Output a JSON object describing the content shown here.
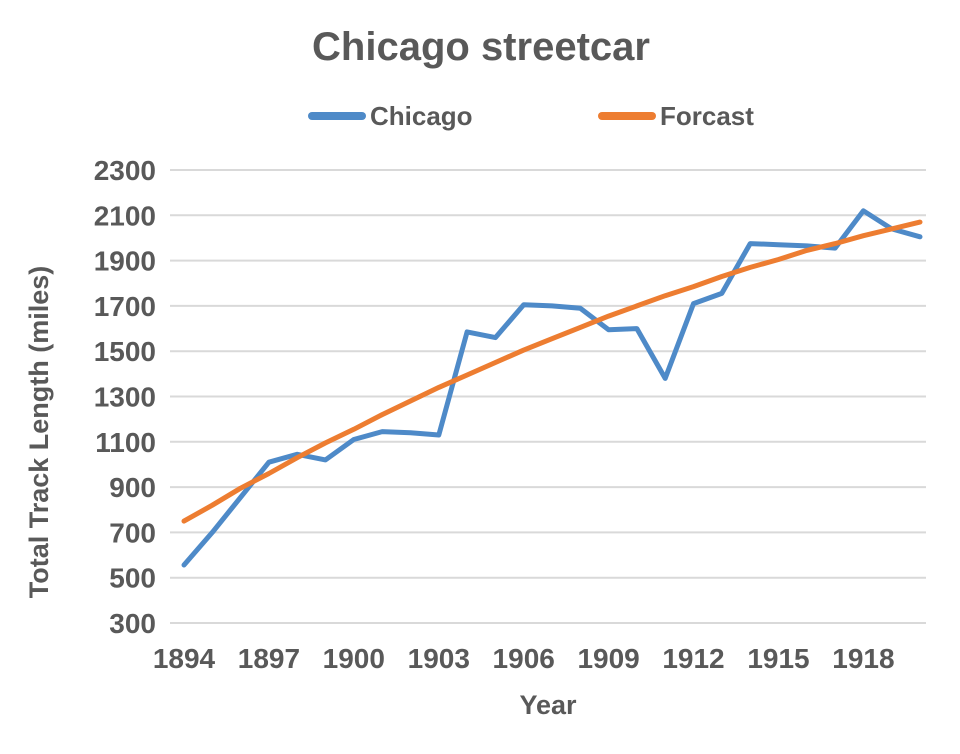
{
  "title": "Chicago streetcar",
  "colors": {
    "chicago_line": "#4E8AC8",
    "forecast_line": "#ED7D31",
    "text": "#595959",
    "gridline": "#D9D9D9",
    "background": "#FFFFFF"
  },
  "legend": {
    "position": "top",
    "items": [
      {
        "label": "Chicago",
        "swatch": "chicago-line-swatch"
      },
      {
        "label": "Forcast",
        "swatch": "forecast-line-swatch"
      }
    ]
  },
  "chart_data": {
    "type": "line",
    "title": "Chicago streetcar",
    "xlabel": "Year",
    "ylabel": "Total Track Length (miles)",
    "x": [
      1894,
      1895,
      1896,
      1897,
      1898,
      1899,
      1900,
      1901,
      1902,
      1903,
      1904,
      1905,
      1906,
      1907,
      1908,
      1909,
      1910,
      1911,
      1912,
      1913,
      1914,
      1915,
      1916,
      1917,
      1918,
      1919,
      1920
    ],
    "x_tick_labels": [
      "1894",
      "1897",
      "1900",
      "1903",
      "1906",
      "1909",
      "1912",
      "1915",
      "1918"
    ],
    "y_ticks": [
      300,
      500,
      700,
      900,
      1100,
      1300,
      1500,
      1700,
      1900,
      2100,
      2300
    ],
    "ylim": [
      300,
      2300
    ],
    "xlim": [
      1894,
      1920
    ],
    "grid": "horizontal",
    "legend_position": "top",
    "series": [
      {
        "name": "Chicago",
        "color": "#4E8AC8",
        "values": [
          556,
          700,
          855,
          1010,
          1045,
          1020,
          1110,
          1145,
          1140,
          1130,
          1585,
          1560,
          1705,
          1700,
          1690,
          1595,
          1600,
          1380,
          1710,
          1755,
          1975,
          1970,
          1965,
          1955,
          2120,
          2040,
          2005
        ]
      },
      {
        "name": "Forcast",
        "color": "#ED7D31",
        "values": [
          750,
          820,
          895,
          960,
          1030,
          1095,
          1155,
          1220,
          1280,
          1340,
          1395,
          1450,
          1505,
          1555,
          1605,
          1655,
          1700,
          1745,
          1785,
          1830,
          1870,
          1905,
          1945,
          1975,
          2010,
          2040,
          2070
        ]
      }
    ]
  }
}
